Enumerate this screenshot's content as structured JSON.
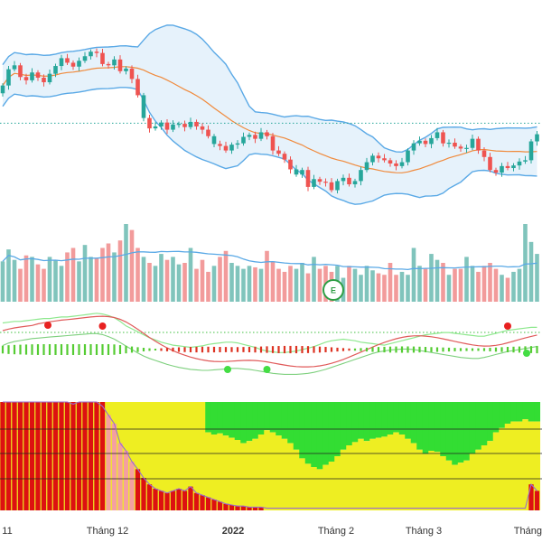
{
  "colors": {
    "up": "#26a69a",
    "down": "#ef5350",
    "vol_up": "#80c4bc",
    "vol_down": "#f29b9b",
    "bb_line": "#5aa9e6",
    "bb_fill": "#e6f2fb",
    "ma": "#f08a3c",
    "ref_line": "#26a69a",
    "vol_ma": "#5aa9e6",
    "green_band": "#33dd33",
    "yellow_band": "#eeee22",
    "red_bar": "#dd1111",
    "pink_bar": "#f4a0a0",
    "event_badge": "#2e9e44"
  },
  "event_badge": {
    "label": "E"
  },
  "chart_data": [
    {
      "type": "candlestick",
      "panel": "price",
      "overlays": [
        "bollinger-bands",
        "moving-average",
        "horizontal-reference-line"
      ],
      "close": [
        101.0,
        103.5,
        104.1,
        102.3,
        101.8,
        103.0,
        102.2,
        101.5,
        102.8,
        104.0,
        105.2,
        104.5,
        103.9,
        104.8,
        105.5,
        106.2,
        106.0,
        104.3,
        104.1,
        105.0,
        103.2,
        103.6,
        102.0,
        99.5,
        96.0,
        94.4,
        94.7,
        95.3,
        94.2,
        95.0,
        95.1,
        94.6,
        95.4,
        94.7,
        94.2,
        93.2,
        92.0,
        91.7,
        91.0,
        91.9,
        92.1,
        93.1,
        93.4,
        92.8,
        93.8,
        93.2,
        91.0,
        90.5,
        89.6,
        88.1,
        87.3,
        88.0,
        85.4,
        86.6,
        86.2,
        86.1,
        84.9,
        86.3,
        86.8,
        85.8,
        86.3,
        88.0,
        89.2,
        90.2,
        89.8,
        89.5,
        89.0,
        88.6,
        89.2,
        91.0,
        92.1,
        92.5,
        92.0,
        92.9,
        93.8,
        92.1,
        92.2,
        91.6,
        91.3,
        91.4,
        92.8,
        91.0,
        90.0,
        88.0,
        87.6,
        88.6,
        88.3,
        88.7,
        89.3,
        89.5,
        92.4,
        93.5
      ],
      "up_ticks": [
        14,
        24,
        36,
        44,
        50,
        62,
        71,
        80
      ],
      "reference_level": 95.2,
      "bollinger": {
        "period": 20,
        "stddev": 2
      },
      "ma_period": 20
    },
    {
      "type": "bar",
      "panel": "volume",
      "values": [
        27,
        35,
        28,
        22,
        31,
        30,
        25,
        22,
        30,
        28,
        24,
        33,
        36,
        27,
        38,
        30,
        29,
        36,
        39,
        33,
        41,
        52,
        48,
        36,
        30,
        26,
        24,
        32,
        28,
        30,
        25,
        26,
        36,
        22,
        28,
        20,
        24,
        30,
        34,
        26,
        24,
        22,
        24,
        23,
        22,
        34,
        27,
        22,
        20,
        24,
        22,
        26,
        19,
        30,
        22,
        24,
        20,
        24,
        16,
        24,
        22,
        18,
        24,
        21,
        19,
        18,
        26,
        18,
        20,
        18,
        36,
        24,
        22,
        32,
        28,
        26,
        18,
        22,
        22,
        30,
        24,
        20,
        24,
        26,
        22,
        18,
        16,
        20,
        22,
        52,
        40,
        32
      ],
      "ma_period": 20
    },
    {
      "type": "line",
      "panel": "oscillator",
      "series": [
        {
          "name": "",
          "role": "upper-band",
          "values": [
            86,
            87,
            88,
            88,
            89,
            90,
            91,
            92,
            92,
            93,
            94,
            94,
            95,
            96,
            97,
            98,
            99,
            98,
            96,
            93,
            88,
            82,
            78,
            74,
            70,
            66,
            63,
            60,
            58,
            56,
            55,
            54,
            53,
            54,
            55,
            57,
            58,
            59,
            60,
            60,
            59,
            57,
            55,
            53,
            50,
            48,
            47,
            46,
            46,
            47,
            48,
            50,
            52,
            54,
            57,
            60,
            62,
            63,
            64,
            63,
            62,
            60,
            59,
            58,
            57,
            56,
            58,
            60,
            62,
            64,
            66,
            68,
            70,
            71,
            72,
            73,
            73,
            72,
            71,
            70,
            69,
            68,
            68,
            70,
            72,
            74,
            76,
            77,
            78,
            79,
            80,
            80
          ]
        },
        {
          "name": "",
          "role": "histogram",
          "values": [
            30,
            35,
            38,
            40,
            42,
            44,
            45,
            46,
            47,
            48,
            49,
            50,
            51,
            52,
            53,
            54,
            54,
            52,
            48,
            43,
            36,
            29,
            22,
            15,
            9,
            4,
            0,
            -4,
            -8,
            -11,
            -14,
            -16,
            -18,
            -19,
            -20,
            -20,
            -19,
            -18,
            -17,
            -16,
            -16,
            -17,
            -18,
            -20,
            -22,
            -24,
            -26,
            -27,
            -28,
            -28,
            -28,
            -27,
            -26,
            -24,
            -21,
            -18,
            -14,
            -10,
            -6,
            -2,
            2,
            6,
            10,
            14,
            17,
            19,
            21,
            22,
            23,
            23,
            22,
            20,
            18,
            16,
            14,
            12,
            10,
            8,
            6,
            5,
            4,
            4,
            6,
            9,
            12,
            15,
            18,
            20,
            22,
            24,
            26,
            28
          ]
        }
      ],
      "markers": [
        {
          "index": 17,
          "kind": "sell"
        },
        {
          "index": 45,
          "kind": "buy"
        },
        {
          "index": 86,
          "kind": "sell"
        }
      ]
    },
    {
      "type": "bar",
      "panel": "strength",
      "series_names": [
        "green-zone",
        "yellow-zone",
        "red-bars"
      ],
      "green_zone_floor": [
        0,
        0,
        0,
        0,
        0,
        0,
        0,
        0,
        0,
        0,
        0,
        0,
        0,
        0,
        0,
        0,
        0,
        0,
        0,
        0,
        0,
        0,
        0,
        0,
        0,
        0,
        0,
        0,
        0,
        0,
        0,
        0,
        0,
        0,
        0,
        28,
        30,
        29,
        31,
        33,
        35,
        38,
        36,
        34,
        30,
        26,
        28,
        31,
        34,
        38,
        44,
        52,
        57,
        60,
        62,
        58,
        55,
        50,
        44,
        40,
        37,
        34,
        36,
        34,
        33,
        32,
        30,
        28,
        30,
        34,
        38,
        44,
        48,
        45,
        46,
        50,
        54,
        58,
        56,
        54,
        48,
        44,
        40,
        36,
        28,
        24,
        20,
        18,
        18,
        16,
        18,
        18
      ],
      "red_values": [
        100,
        100,
        100,
        100,
        100,
        100,
        100,
        100,
        100,
        100,
        100,
        100,
        98,
        100,
        100,
        100,
        100,
        96,
        88,
        80,
        62,
        55,
        45,
        38,
        30,
        24,
        20,
        18,
        16,
        18,
        20,
        18,
        22,
        16,
        14,
        12,
        10,
        8,
        6,
        5,
        4,
        4,
        3,
        3,
        3,
        2,
        2,
        2,
        2,
        2,
        2,
        2,
        2,
        2,
        2,
        2,
        2,
        2,
        2,
        2,
        2,
        2,
        2,
        2,
        2,
        2,
        2,
        2,
        2,
        2,
        2,
        2,
        2,
        2,
        2,
        2,
        2,
        2,
        2,
        2,
        2,
        2,
        2,
        2,
        2,
        2,
        2,
        2,
        2,
        2,
        24,
        18
      ]
    }
  ],
  "x_axis": {
    "labels": [
      "11",
      "Tháng 12",
      "2022",
      "Tháng 2",
      "Tháng 3",
      "Tháng"
    ]
  }
}
